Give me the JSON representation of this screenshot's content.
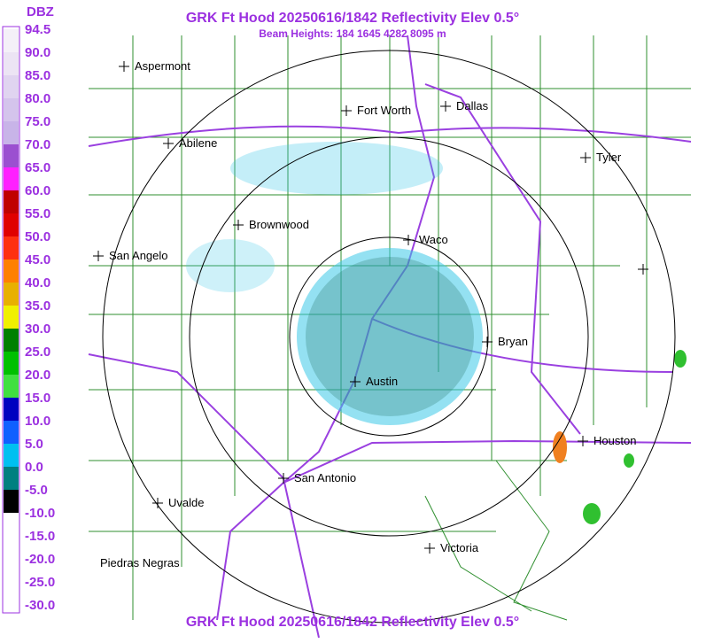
{
  "header": {
    "title": "GRK Ft Hood 20250616/1842 Reflectivity Elev 0.5°",
    "subtitle": "Beam Heights: 184 1645 4282 8095 m",
    "footer": "GRK Ft Hood 20250616/1842 Reflectivity Elev 0.5°"
  },
  "legend": {
    "unit": "DBZ",
    "labels": [
      "94.5",
      "90.0",
      "85.0",
      "80.0",
      "75.0",
      "70.0",
      "65.0",
      "60.0",
      "55.0",
      "50.0",
      "45.0",
      "40.0",
      "35.0",
      "30.0",
      "25.0",
      "20.0",
      "15.0",
      "10.0",
      "5.0",
      "0.0",
      "-5.0",
      "-10.0",
      "-15.0",
      "-20.0",
      "-25.0",
      "-30.0"
    ]
  },
  "cities": [
    "Aspermont",
    "Abilene",
    "Fort Worth",
    "Dallas",
    "Tyler",
    "Brownwood",
    "Waco",
    "San Angelo",
    "Bryan",
    "Austin",
    "Houston",
    "San Antonio",
    "Uvalde",
    "Victoria",
    "Piedras Negras"
  ]
}
